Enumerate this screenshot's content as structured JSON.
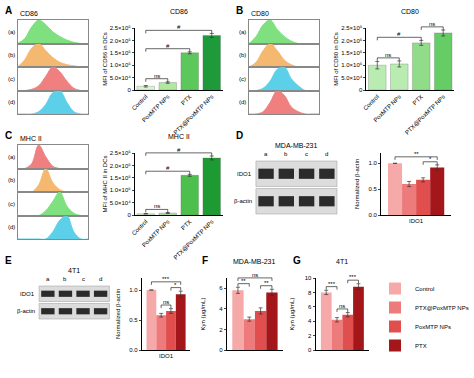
{
  "chart_data": [
    {
      "type": "area",
      "title": "CD86",
      "annotations": [
        {
          "text": "A"
        }
      ],
      "tick_labels": false,
      "x": [
        0,
        1,
        2,
        3,
        4,
        5,
        6,
        7,
        8,
        9,
        10
      ],
      "xlim": [
        0,
        10
      ],
      "ylim": [
        0,
        1
      ],
      "series": [
        {
          "name": "(a)",
          "color": "#7ee07e",
          "values": [
            0,
            0.2,
            0.7,
            1,
            0.8,
            0.5,
            0.3,
            0.15,
            0.05,
            0,
            0
          ]
        },
        {
          "name": "(b)",
          "color": "#f5b870",
          "values": [
            0,
            0.3,
            0.8,
            1,
            0.7,
            0.4,
            0.2,
            0.1,
            0.05,
            0,
            0
          ]
        },
        {
          "name": "(c)",
          "color": "#f08080",
          "values": [
            0,
            0,
            0.05,
            0.2,
            0.6,
            1,
            0.8,
            0.4,
            0.1,
            0,
            0
          ]
        },
        {
          "name": "(d)",
          "color": "#5cd0e8",
          "values": [
            0,
            0,
            0,
            0.1,
            0.4,
            0.9,
            1,
            0.5,
            0.1,
            0,
            0
          ]
        }
      ]
    },
    {
      "type": "bar",
      "title": "CD86",
      "ylabel": "MFI of CD86 in DCs",
      "categories": [
        "Control",
        "PoxMTP NPs",
        "PTX",
        "PTX@PoxMTP NPs"
      ],
      "values": [
        15000,
        30000,
        150000,
        220000
      ],
      "errors": [
        3000,
        3000,
        4000,
        8000
      ],
      "colors": [
        "#d8f5d0",
        "#b0e8a0",
        "#5cc85c",
        "#1f9a3a"
      ],
      "ylim": [
        0,
        250000
      ],
      "yticks": [
        0,
        {
          "value": 50000,
          "label": "5.0×10⁴"
        },
        {
          "value": 100000,
          "label": "1.0×10⁵"
        },
        {
          "value": 150000,
          "label": "1.5×10⁵"
        },
        {
          "value": 200000,
          "label": "2.0×10⁵"
        },
        {
          "value": 250000,
          "label": "2.5×10⁵"
        }
      ],
      "annotations": [
        {
          "text": "ns",
          "from": 0,
          "to": 1
        },
        {
          "text": "#",
          "from": 0,
          "to": 2
        },
        {
          "text": "#",
          "from": 0,
          "to": 3
        }
      ]
    },
    {
      "type": "area",
      "title": "CD80",
      "annotations": [
        {
          "text": "B"
        }
      ],
      "tick_labels": false,
      "x": [
        0,
        1,
        2,
        3,
        4,
        5,
        6,
        7,
        8,
        9,
        10
      ],
      "xlim": [
        0,
        10
      ],
      "ylim": [
        0,
        1
      ],
      "series": [
        {
          "name": "(a)",
          "color": "#7ee07e",
          "values": [
            0,
            0.3,
            0.8,
            1,
            0.6,
            0.3,
            0.1,
            0,
            0,
            0,
            0
          ]
        },
        {
          "name": "(b)",
          "color": "#f5b870",
          "values": [
            0,
            0.2,
            0.7,
            1,
            0.7,
            0.3,
            0.1,
            0,
            0,
            0,
            0
          ]
        },
        {
          "name": "(c)",
          "color": "#5cd0e8",
          "values": [
            0,
            0,
            0.1,
            0.4,
            0.9,
            1,
            0.5,
            0.2,
            0,
            0,
            0
          ]
        },
        {
          "name": "(d)",
          "color": "#f08080",
          "values": [
            0,
            0,
            0.1,
            0.5,
            1,
            0.8,
            0.3,
            0.1,
            0,
            0,
            0
          ]
        }
      ]
    },
    {
      "type": "bar",
      "title": "CD80",
      "ylabel": "MFI of CD80 in DCs",
      "categories": [
        "Control",
        "PoxMTP NPs",
        "PTX",
        "PTX@PoxMTP NPs"
      ],
      "values": [
        100000,
        105000,
        190000,
        230000
      ],
      "errors": [
        15000,
        12000,
        10000,
        12000
      ],
      "colors": [
        "#b8ecb0",
        "#b8ecb0",
        "#90dc88",
        "#66cc66"
      ],
      "ylim": [
        0,
        250000
      ],
      "yticks": [
        0,
        {
          "value": 50000,
          "label": "5.0×10⁴"
        },
        {
          "value": 100000,
          "label": "1.0×10⁵"
        },
        {
          "value": 150000,
          "label": "1.5×10⁵"
        },
        {
          "value": 200000,
          "label": "2.0×10⁵"
        },
        {
          "value": 250000,
          "label": "2.5×10⁵"
        }
      ],
      "annotations": [
        {
          "text": "ns",
          "from": 0,
          "to": 1
        },
        {
          "text": "#",
          "from": 0,
          "to": 2
        },
        {
          "text": "ns",
          "from": 2,
          "to": 3
        }
      ]
    },
    {
      "type": "area",
      "title": "MHC II",
      "annotations": [
        {
          "text": "C"
        }
      ],
      "tick_labels": false,
      "x": [
        0,
        1,
        2,
        3,
        4,
        5,
        6,
        7,
        8,
        9,
        10
      ],
      "xlim": [
        0,
        10
      ],
      "ylim": [
        0,
        1
      ],
      "series": [
        {
          "name": "(a)",
          "color": "#f08080",
          "values": [
            0,
            0,
            0.2,
            1,
            0.5,
            0.1,
            0,
            0,
            0,
            0,
            0
          ]
        },
        {
          "name": "(b)",
          "color": "#f5b870",
          "values": [
            0,
            0,
            0,
            0.3,
            1,
            0.4,
            0.1,
            0,
            0,
            0,
            0
          ]
        },
        {
          "name": "(c)",
          "color": "#7ee07e",
          "values": [
            0,
            0,
            0,
            0,
            0.2,
            0.6,
            1,
            0.4,
            0.1,
            0,
            0
          ]
        },
        {
          "name": "(d)",
          "color": "#5cd0e8",
          "values": [
            0,
            0,
            0,
            0,
            0,
            0.3,
            0.8,
            1,
            0.3,
            0,
            0
          ]
        }
      ]
    },
    {
      "type": "bar",
      "title": "MHC II",
      "ylabel": "MFI of MHC II in DCs",
      "categories": [
        "Control",
        "PoxMTP NPs",
        "PTX",
        "PTX@PoxMTP NPs"
      ],
      "values": [
        5000,
        8000,
        160000,
        230000
      ],
      "errors": [
        1000,
        2000,
        4000,
        8000
      ],
      "colors": [
        "#d8f5d0",
        "#b0e8a0",
        "#4cbf4c",
        "#1e9a32"
      ],
      "ylim": [
        0,
        250000
      ],
      "yticks": [
        0,
        {
          "value": 50000,
          "label": "5.0×10⁴"
        },
        {
          "value": 100000,
          "label": "1.0×10⁵"
        },
        {
          "value": 150000,
          "label": "1.5×10⁵"
        },
        {
          "value": 200000,
          "label": "2.0×10⁵"
        },
        {
          "value": 250000,
          "label": "2.5×10⁵"
        }
      ],
      "annotations": [
        {
          "text": "ns",
          "from": 0,
          "to": 1
        },
        {
          "text": "#",
          "from": 0,
          "to": 2
        },
        {
          "text": "#",
          "from": 0,
          "to": 3
        }
      ]
    },
    {
      "type": "blot",
      "title": "MDA-MB-231",
      "annotations": [
        {
          "text": "D"
        }
      ],
      "lanes": [
        "a",
        "b",
        "c",
        "d"
      ],
      "rows": [
        "IDO1",
        "β-actin"
      ]
    },
    {
      "type": "bar",
      "ylabel": "Normalized β-actin",
      "categories": [
        "IDO1"
      ],
      "series": [
        {
          "name": "Control",
          "color": "#f6a9a9",
          "values": [
            1.0
          ],
          "errors": [
            0
          ]
        },
        {
          "name": "PTX@PoxMTP NPs",
          "color": "#ee7b7b",
          "values": [
            0.6
          ],
          "errors": [
            0.05
          ]
        },
        {
          "name": "PoxMTP NPs",
          "color": "#e04e4e",
          "values": [
            0.68
          ],
          "errors": [
            0.04
          ]
        },
        {
          "name": "PTX",
          "color": "#a3171b",
          "values": [
            0.92
          ],
          "errors": [
            0.05
          ]
        }
      ],
      "ylim": [
        0,
        1.2
      ],
      "yticks": [
        {
          "value": 0,
          "label": "0.0"
        },
        0.5,
        {
          "value": 1,
          "label": "1.0"
        }
      ],
      "annotations": [
        {
          "text": "*",
          "from": 2,
          "to": 3
        },
        {
          "text": "**",
          "from": 0,
          "to": 3
        }
      ]
    },
    {
      "type": "blot",
      "title": "4T1",
      "annotations": [
        {
          "text": "E"
        }
      ],
      "lanes": [
        "a",
        "b",
        "c",
        "d"
      ],
      "rows": [
        "IDO1",
        "β-actin"
      ]
    },
    {
      "type": "bar",
      "ylabel": "Normalized β-actin",
      "categories": [
        "IDO1"
      ],
      "series": [
        {
          "name": "Control",
          "color": "#f6a9a9",
          "values": [
            1.0
          ],
          "errors": [
            0
          ]
        },
        {
          "name": "PTX@PoxMTP NPs",
          "color": "#ee7b7b",
          "values": [
            0.58
          ],
          "errors": [
            0.03
          ]
        },
        {
          "name": "PoxMTP NPs",
          "color": "#e04e4e",
          "values": [
            0.65
          ],
          "errors": [
            0.04
          ]
        },
        {
          "name": "PTX",
          "color": "#a3171b",
          "values": [
            0.93
          ],
          "errors": [
            0.05
          ]
        }
      ],
      "ylim": [
        0,
        1.2
      ],
      "yticks": [
        {
          "value": 0,
          "label": "0.0"
        },
        0.5,
        {
          "value": 1,
          "label": "1.0"
        }
      ],
      "annotations": [
        {
          "text": "ns",
          "from": 1,
          "to": 2
        },
        {
          "text": "*",
          "from": 2,
          "to": 3
        },
        {
          "text": "***",
          "from": 0,
          "to": 3
        }
      ]
    },
    {
      "type": "bar",
      "title": "MDA-MB-231",
      "ylabel": "Kyn (μg/mL)",
      "categories": [
        null
      ],
      "annotations": [
        {
          "text": "F"
        },
        {
          "text": "**",
          "from": 0,
          "to": 1
        },
        {
          "text": "**",
          "from": 2,
          "to": 3
        },
        {
          "text": "ns",
          "from": 0,
          "to": 3
        }
      ],
      "series": [
        {
          "name": "Control",
          "color": "#f6a9a9",
          "values": [
            5.8
          ],
          "errors": [
            0.3
          ]
        },
        {
          "name": "PTX@PoxMTP NPs",
          "color": "#ee7b7b",
          "values": [
            3.0
          ],
          "errors": [
            0.2
          ]
        },
        {
          "name": "PoxMTP NPs",
          "color": "#e04e4e",
          "values": [
            3.8
          ],
          "errors": [
            0.3
          ]
        },
        {
          "name": "PTX",
          "color": "#a3171b",
          "values": [
            5.6
          ],
          "errors": [
            0.3
          ]
        }
      ],
      "ylim": [
        0,
        7
      ],
      "yticks": [
        0,
        2,
        4,
        6
      ]
    },
    {
      "type": "bar",
      "title": "4T1",
      "ylabel": "Kyn (μg/mL)",
      "categories": [
        null
      ],
      "legend": "right",
      "annotations": [
        {
          "text": "G"
        },
        {
          "text": "***",
          "from": 0,
          "to": 1
        },
        {
          "text": "ns",
          "from": 1,
          "to": 2
        },
        {
          "text": "***",
          "from": 2,
          "to": 3
        }
      ],
      "series": [
        {
          "name": "Control",
          "color": "#f6a9a9",
          "values": [
            8.0
          ],
          "errors": [
            0.3
          ]
        },
        {
          "name": "PTX@PoxMTP NPs",
          "color": "#ee7b7b",
          "values": [
            4.2
          ],
          "errors": [
            0.3
          ]
        },
        {
          "name": "PoxMTP NPs",
          "color": "#e04e4e",
          "values": [
            4.9
          ],
          "errors": [
            0.3
          ]
        },
        {
          "name": "PTX",
          "color": "#a3171b",
          "values": [
            8.8
          ],
          "errors": [
            0.4
          ]
        }
      ],
      "ylim": [
        0,
        10
      ],
      "yticks": [
        0,
        2,
        4,
        6,
        8,
        10
      ]
    }
  ]
}
